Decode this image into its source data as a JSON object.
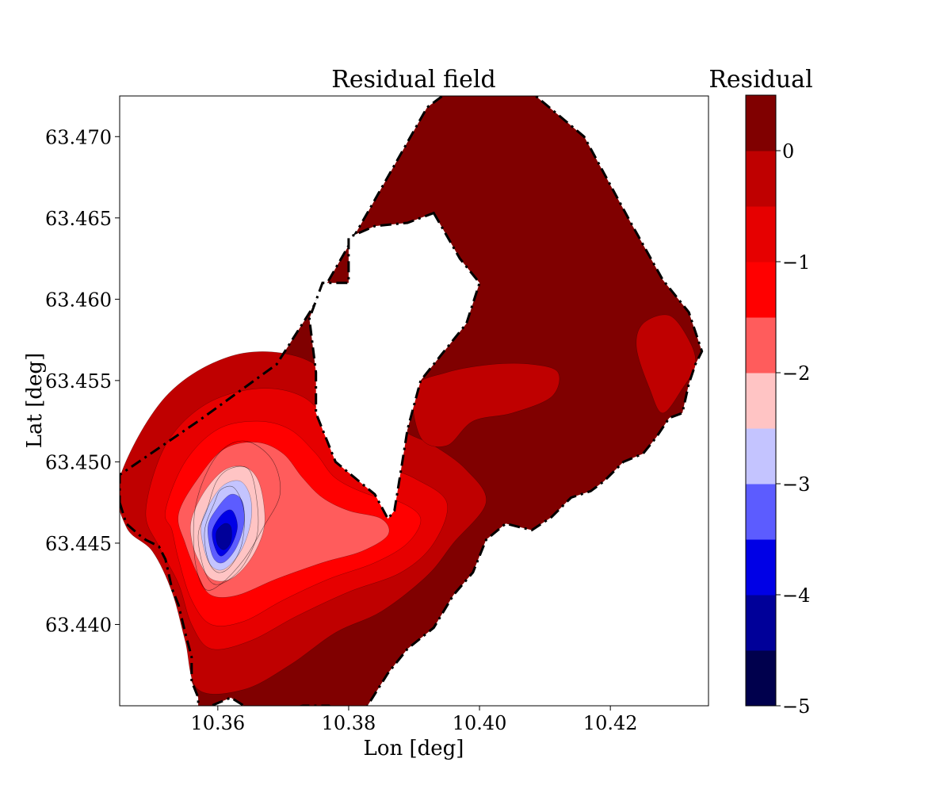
{
  "chart_data": {
    "type": "heatmap",
    "title": "Residual field",
    "xlabel": "Lon [deg]",
    "ylabel": "Lat [deg]",
    "xlim": [
      10.345,
      10.435
    ],
    "ylim": [
      63.435,
      63.4725
    ],
    "x_ticks": [
      10.36,
      10.38,
      10.4,
      10.42
    ],
    "x_tick_labels": [
      "10.36",
      "10.38",
      "10.40",
      "10.42"
    ],
    "y_ticks": [
      63.44,
      63.445,
      63.45,
      63.455,
      63.46,
      63.465,
      63.47
    ],
    "y_tick_labels": [
      "63.440",
      "63.445",
      "63.450",
      "63.455",
      "63.460",
      "63.465",
      "63.470"
    ],
    "grid": false,
    "colorbar": {
      "label": "Residual",
      "levels": [
        -5,
        -4.5,
        -4,
        -3.5,
        -3,
        -2.5,
        -2,
        -1.5,
        -1,
        -0.5,
        0,
        0.5
      ],
      "colors": [
        "#00004d",
        "#000099",
        "#0000e6",
        "#5c5cff",
        "#c4c4ff",
        "#ffc4c4",
        "#ff5c5c",
        "#ff0000",
        "#e60000",
        "#bf0000",
        "#800000"
      ],
      "tick_values": [
        0,
        -1,
        -2,
        -3,
        -4,
        -5
      ],
      "tick_labels": [
        "0",
        "−1",
        "−2",
        "−3",
        "−4",
        "−5"
      ]
    },
    "minimum": {
      "lon": 10.36,
      "lat": 63.4455,
      "value": -4.8
    },
    "boundary": [
      [
        10.345,
        63.4475
      ],
      [
        10.346,
        63.4462
      ],
      [
        10.348,
        63.4455
      ],
      [
        10.349,
        63.4452
      ],
      [
        10.351,
        63.4448
      ],
      [
        10.352,
        63.444
      ],
      [
        10.353,
        63.4422
      ],
      [
        10.354,
        63.4412
      ],
      [
        10.355,
        63.4395
      ],
      [
        10.356,
        63.438
      ],
      [
        10.356,
        63.4365
      ],
      [
        10.357,
        63.4355
      ],
      [
        10.357,
        63.4345
      ],
      [
        10.359,
        63.435
      ],
      [
        10.362,
        63.4355
      ],
      [
        10.364,
        63.435
      ],
      [
        10.368,
        63.4345
      ],
      [
        10.373,
        63.435
      ],
      [
        10.377,
        63.435
      ],
      [
        10.381,
        63.4338
      ],
      [
        10.386,
        63.437
      ],
      [
        10.389,
        63.4385
      ],
      [
        10.393,
        63.4398
      ],
      [
        10.396,
        63.4418
      ],
      [
        10.399,
        63.4432
      ],
      [
        10.401,
        63.4452
      ],
      [
        10.404,
        63.4462
      ],
      [
        10.408,
        63.4458
      ],
      [
        10.411,
        63.4466
      ],
      [
        10.414,
        63.4478
      ],
      [
        10.417,
        63.4482
      ],
      [
        10.419,
        63.4488
      ],
      [
        10.422,
        63.45
      ],
      [
        10.425,
        63.4505
      ],
      [
        10.427,
        63.4515
      ],
      [
        10.429,
        63.4527
      ],
      [
        10.431,
        63.453
      ],
      [
        10.432,
        63.4548
      ],
      [
        10.433,
        63.456
      ],
      [
        10.434,
        63.4568
      ],
      [
        10.432,
        63.4592
      ],
      [
        10.428,
        63.4612
      ],
      [
        10.423,
        63.4648
      ],
      [
        10.416,
        63.47
      ],
      [
        10.408,
        63.4727
      ],
      [
        10.395,
        63.4727
      ],
      [
        10.392,
        63.4718
      ],
      [
        10.383,
        63.4654
      ],
      [
        10.375,
        63.4598
      ],
      [
        10.369,
        63.456
      ],
      [
        10.357,
        63.4525
      ],
      [
        10.345,
        63.4492
      ]
    ],
    "boundary_island": [
      [
        10.393,
        63.4653
      ],
      [
        10.397,
        63.4625
      ],
      [
        10.4,
        63.461
      ],
      [
        10.398,
        63.4585
      ],
      [
        10.394,
        63.4565
      ],
      [
        10.391,
        63.455
      ],
      [
        10.389,
        63.452
      ],
      [
        10.388,
        63.4495
      ],
      [
        10.387,
        63.447
      ],
      [
        10.386,
        63.4465
      ],
      [
        10.384,
        63.448
      ],
      [
        10.381,
        63.449
      ],
      [
        10.378,
        63.45
      ],
      [
        10.375,
        63.453
      ],
      [
        10.375,
        63.4555
      ],
      [
        10.374,
        63.4588
      ],
      [
        10.376,
        63.461
      ],
      [
        10.38,
        63.461
      ],
      [
        10.38,
        63.4638
      ],
      [
        10.384,
        63.4645
      ],
      [
        10.389,
        63.4647
      ]
    ],
    "contour_bands": [
      {
        "level": 0.5,
        "shape": [
          [
            10.345,
            63.4475
          ],
          [
            10.346,
            63.4462
          ],
          [
            10.348,
            63.4455
          ],
          [
            10.349,
            63.4452
          ],
          [
            10.351,
            63.4448
          ],
          [
            10.352,
            63.444
          ],
          [
            10.353,
            63.4422
          ],
          [
            10.354,
            63.4412
          ],
          [
            10.355,
            63.4395
          ],
          [
            10.356,
            63.438
          ],
          [
            10.356,
            63.4365
          ],
          [
            10.357,
            63.4355
          ],
          [
            10.357,
            63.4345
          ],
          [
            10.359,
            63.435
          ],
          [
            10.362,
            63.4355
          ],
          [
            10.364,
            63.435
          ],
          [
            10.368,
            63.4345
          ],
          [
            10.373,
            63.435
          ],
          [
            10.377,
            63.435
          ],
          [
            10.381,
            63.4338
          ],
          [
            10.386,
            63.437
          ],
          [
            10.389,
            63.4385
          ],
          [
            10.393,
            63.4398
          ],
          [
            10.396,
            63.4418
          ],
          [
            10.399,
            63.4432
          ],
          [
            10.401,
            63.4452
          ],
          [
            10.404,
            63.4462
          ],
          [
            10.408,
            63.4458
          ],
          [
            10.411,
            63.4466
          ],
          [
            10.414,
            63.4478
          ],
          [
            10.417,
            63.4482
          ],
          [
            10.419,
            63.4488
          ],
          [
            10.422,
            63.45
          ],
          [
            10.425,
            63.4505
          ],
          [
            10.427,
            63.4515
          ],
          [
            10.429,
            63.4527
          ],
          [
            10.431,
            63.453
          ],
          [
            10.432,
            63.4548
          ],
          [
            10.433,
            63.456
          ],
          [
            10.434,
            63.4568
          ],
          [
            10.432,
            63.4592
          ],
          [
            10.428,
            63.4612
          ],
          [
            10.423,
            63.4648
          ],
          [
            10.416,
            63.47
          ],
          [
            10.408,
            63.4727
          ],
          [
            10.395,
            63.4727
          ],
          [
            10.392,
            63.4718
          ],
          [
            10.383,
            63.4654
          ],
          [
            10.375,
            63.4598
          ],
          [
            10.369,
            63.456
          ],
          [
            10.357,
            63.4525
          ],
          [
            10.345,
            63.4492
          ]
        ]
      },
      {
        "level": 0,
        "shape": [
          [
            10.345,
            63.449
          ],
          [
            10.352,
            63.454
          ],
          [
            10.362,
            63.4565
          ],
          [
            10.372,
            63.4565
          ],
          [
            10.38,
            63.4545
          ],
          [
            10.388,
            63.452
          ],
          [
            10.393,
            63.451
          ],
          [
            10.398,
            63.4495
          ],
          [
            10.401,
            63.4475
          ],
          [
            10.396,
            63.445
          ],
          [
            10.392,
            63.443
          ],
          [
            10.385,
            63.4408
          ],
          [
            10.378,
            63.4395
          ],
          [
            10.371,
            63.4375
          ],
          [
            10.364,
            63.436
          ],
          [
            10.357,
            63.436
          ],
          [
            10.355,
            63.439
          ],
          [
            10.353,
            63.442
          ],
          [
            10.35,
            63.4445
          ],
          [
            10.346,
            63.446
          ]
        ]
      },
      {
        "level": 0,
        "shape": [
          [
            10.39,
            63.4545
          ],
          [
            10.395,
            63.4555
          ],
          [
            10.402,
            63.456
          ],
          [
            10.408,
            63.456
          ],
          [
            10.412,
            63.4555
          ],
          [
            10.411,
            63.454
          ],
          [
            10.405,
            63.453
          ],
          [
            10.399,
            63.4525
          ],
          [
            10.395,
            63.451
          ],
          [
            10.391,
            63.4515
          ]
        ]
      },
      {
        "level": 0,
        "shape": [
          [
            10.425,
            63.4585
          ],
          [
            10.429,
            63.459
          ],
          [
            10.432,
            63.4575
          ],
          [
            10.433,
            63.456
          ],
          [
            10.431,
            63.4545
          ],
          [
            10.428,
            63.453
          ],
          [
            10.426,
            63.4545
          ],
          [
            10.424,
            63.457
          ]
        ]
      },
      {
        "level": -0.5,
        "shape": [
          [
            10.349,
            63.447
          ],
          [
            10.352,
            63.451
          ],
          [
            10.358,
            63.4535
          ],
          [
            10.366,
            63.4545
          ],
          [
            10.373,
            63.454
          ],
          [
            10.378,
            63.452
          ],
          [
            10.384,
            63.45
          ],
          [
            10.39,
            63.449
          ],
          [
            10.395,
            63.4475
          ],
          [
            10.393,
            63.445
          ],
          [
            10.388,
            63.4432
          ],
          [
            10.38,
            63.442
          ],
          [
            10.372,
            63.4405
          ],
          [
            10.365,
            63.439
          ],
          [
            10.359,
            63.4385
          ],
          [
            10.356,
            63.44
          ],
          [
            10.354,
            63.4425
          ],
          [
            10.351,
            63.4448
          ]
        ]
      },
      {
        "level": -1,
        "shape": [
          [
            10.352,
            63.447
          ],
          [
            10.355,
            63.45
          ],
          [
            10.36,
            63.452
          ],
          [
            10.366,
            63.4525
          ],
          [
            10.371,
            63.452
          ],
          [
            10.375,
            63.4505
          ],
          [
            10.378,
            63.449
          ],
          [
            10.383,
            63.448
          ],
          [
            10.388,
            63.4475
          ],
          [
            10.391,
            63.4465
          ],
          [
            10.389,
            63.445
          ],
          [
            10.384,
            63.4438
          ],
          [
            10.377,
            63.4428
          ],
          [
            10.37,
            63.4415
          ],
          [
            10.364,
            63.4402
          ],
          [
            10.359,
            63.44
          ],
          [
            10.356,
            63.4415
          ],
          [
            10.354,
            63.444
          ],
          [
            10.353,
            63.4458
          ]
        ]
      },
      {
        "level": -1.5,
        "shape": [
          [
            10.354,
            63.4468
          ],
          [
            10.357,
            63.449
          ],
          [
            10.361,
            63.4508
          ],
          [
            10.366,
            63.4512
          ],
          [
            10.37,
            63.4505
          ],
          [
            10.373,
            63.449
          ],
          [
            10.376,
            63.4478
          ],
          [
            10.38,
            63.447
          ],
          [
            10.385,
            63.4465
          ],
          [
            10.386,
            63.4455
          ],
          [
            10.382,
            63.4445
          ],
          [
            10.376,
            63.4438
          ],
          [
            10.369,
            63.4428
          ],
          [
            10.363,
            63.4418
          ],
          [
            10.359,
            63.4418
          ],
          [
            10.357,
            63.443
          ],
          [
            10.355,
            63.445
          ]
        ]
      },
      {
        "level": -2,
        "shape": [
          [
            10.356,
            63.4465
          ],
          [
            10.358,
            63.4482
          ],
          [
            10.361,
            63.4495
          ],
          [
            10.364,
            63.4497
          ],
          [
            10.366,
            63.449
          ],
          [
            10.367,
            63.4475
          ],
          [
            10.367,
            63.4458
          ],
          [
            10.365,
            63.444
          ],
          [
            10.362,
            63.4428
          ],
          [
            10.359,
            63.4428
          ],
          [
            10.357,
            63.444
          ],
          [
            10.356,
            63.4452
          ]
        ]
      },
      {
        "level": -2.5,
        "shape": [
          [
            10.3575,
            63.4462
          ],
          [
            10.359,
            63.4476
          ],
          [
            10.361,
            63.4486
          ],
          [
            10.3635,
            63.4488
          ],
          [
            10.365,
            63.4478
          ],
          [
            10.365,
            63.4462
          ],
          [
            10.3635,
            63.4445
          ],
          [
            10.361,
            63.4434
          ],
          [
            10.359,
            63.4436
          ],
          [
            10.3578,
            63.4448
          ]
        ]
      },
      {
        "level": -3,
        "shape": [
          [
            10.3585,
            63.446
          ],
          [
            10.36,
            63.4472
          ],
          [
            10.362,
            63.448
          ],
          [
            10.3637,
            63.4476
          ],
          [
            10.364,
            63.4462
          ],
          [
            10.3628,
            63.4447
          ],
          [
            10.3608,
            63.4438
          ],
          [
            10.3592,
            63.4442
          ]
        ]
      },
      {
        "level": -3.5,
        "shape": [
          [
            10.3592,
            63.4458
          ],
          [
            10.3607,
            63.4468
          ],
          [
            10.3622,
            63.447
          ],
          [
            10.363,
            63.446
          ],
          [
            10.362,
            63.4448
          ],
          [
            10.3605,
            63.4442
          ],
          [
            10.3595,
            63.4448
          ]
        ]
      },
      {
        "level": -4,
        "shape": [
          [
            10.3598,
            63.4457
          ],
          [
            10.361,
            63.4462
          ],
          [
            10.362,
            63.446
          ],
          [
            10.362,
            63.4451
          ],
          [
            10.361,
            63.4446
          ],
          [
            10.36,
            63.4449
          ]
        ]
      }
    ],
    "thin_contours": [
      [
        [
          10.3595,
          63.4475
        ],
        [
          10.3605,
          63.4483
        ],
        [
          10.3625,
          63.4484
        ],
        [
          10.364,
          63.447
        ],
        [
          10.3637,
          63.445
        ],
        [
          10.362,
          63.4436
        ],
        [
          10.36,
          63.4432
        ],
        [
          10.3585,
          63.444
        ],
        [
          10.358,
          63.4458
        ]
      ],
      [
        [
          10.3583,
          63.447
        ],
        [
          10.3598,
          63.4488
        ],
        [
          10.362,
          63.4496
        ],
        [
          10.3648,
          63.4495
        ],
        [
          10.366,
          63.4475
        ],
        [
          10.366,
          63.4455
        ],
        [
          10.364,
          63.4437
        ],
        [
          10.3615,
          63.4427
        ],
        [
          10.3593,
          63.4425
        ],
        [
          10.3578,
          63.4435
        ],
        [
          10.357,
          63.4455
        ]
      ],
      [
        [
          10.3565,
          63.447
        ],
        [
          10.3585,
          63.4495
        ],
        [
          10.3615,
          63.451
        ],
        [
          10.365,
          63.4512
        ],
        [
          10.3685,
          63.45
        ],
        [
          10.3695,
          63.448
        ],
        [
          10.367,
          63.446
        ],
        [
          10.364,
          63.444
        ],
        [
          10.3605,
          63.4425
        ],
        [
          10.358,
          63.4422
        ],
        [
          10.3565,
          63.444
        ]
      ]
    ]
  }
}
